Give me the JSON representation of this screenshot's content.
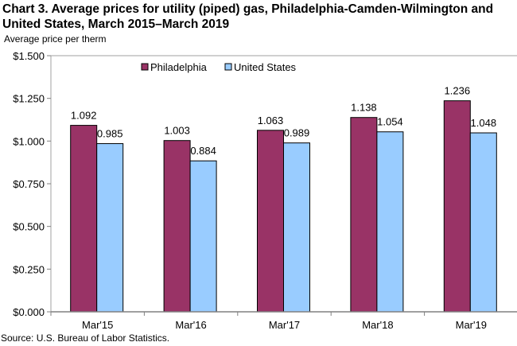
{
  "chart_data": {
    "type": "bar",
    "title": "Chart 3. Average prices for utility (piped) gas, Philadelphia-Camden-Wilmington  and United States, March 2015–March 2019",
    "ylabel": "Average price per therm",
    "xlabel": "",
    "categories": [
      "Mar'15",
      "Mar'16",
      "Mar'17",
      "Mar'18",
      "Mar'19"
    ],
    "series": [
      {
        "name": "Philadelphia",
        "color": "#993366",
        "values": [
          1.092,
          1.003,
          1.063,
          1.138,
          1.236
        ],
        "labels": [
          "1.092",
          "1.003",
          "1.063",
          "1.138",
          "1.236"
        ]
      },
      {
        "name": "United States",
        "color": "#99CCFF",
        "values": [
          0.985,
          0.884,
          0.989,
          1.054,
          1.048
        ],
        "labels": [
          "0.985",
          "0.884",
          "0.989",
          "1.054",
          "1.048"
        ]
      }
    ],
    "ylim": [
      0,
      1.5
    ],
    "yticks": [
      "$0.000",
      "$0.250",
      "$0.500",
      "$0.750",
      "$1.000",
      "$1.250",
      "$1.500"
    ],
    "grid": false,
    "legend": "top-center",
    "source": "Source: U.S. Bureau of Labor Statistics."
  }
}
